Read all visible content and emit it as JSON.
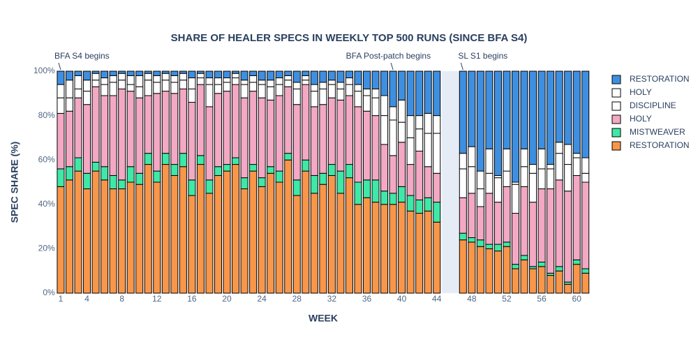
{
  "chart_data": {
    "type": "bar",
    "stacked": true,
    "title": "SHARE OF HEALER SPECS IN WEEKLY TOP 500 RUNS (SINCE BFA S4)",
    "x_label": "WEEK",
    "y_label": "SPEC SHARE (%)",
    "x": [
      1,
      2,
      3,
      4,
      5,
      6,
      7,
      8,
      9,
      10,
      11,
      12,
      13,
      14,
      15,
      16,
      17,
      18,
      19,
      20,
      21,
      22,
      23,
      24,
      25,
      26,
      27,
      28,
      29,
      30,
      31,
      32,
      33,
      34,
      35,
      36,
      37,
      38,
      39,
      40,
      41,
      42,
      43,
      44,
      47,
      48,
      49,
      50,
      51,
      52,
      53,
      54,
      55,
      56,
      57,
      58,
      59,
      60,
      61
    ],
    "xlim": [
      0.5,
      61.5
    ],
    "xticks": [
      1,
      4,
      8,
      12,
      16,
      20,
      24,
      28,
      32,
      36,
      40,
      44,
      48,
      52,
      56,
      60
    ],
    "ylim": [
      0,
      100
    ],
    "yticks": [
      {
        "value": 0,
        "label": "0%"
      },
      {
        "value": 20,
        "label": "20%"
      },
      {
        "value": 40,
        "label": "40%"
      },
      {
        "value": 60,
        "label": "60%"
      },
      {
        "value": 80,
        "label": "80%"
      },
      {
        "value": 100,
        "label": "100%"
      }
    ],
    "annotations": [
      {
        "text": "BFA S4 begins",
        "x": 1
      },
      {
        "text": "BFA Post-patch begins",
        "x": 39
      },
      {
        "text": "SL S1 begins",
        "x": 47
      }
    ],
    "series": [
      {
        "name": "RESTORATION",
        "color": "#f8964a",
        "values": [
          48,
          51,
          55,
          47,
          55,
          51,
          47,
          47,
          50,
          49,
          58,
          50,
          58,
          53,
          57,
          44,
          58,
          45,
          53,
          55,
          58,
          47,
          55,
          48,
          54,
          50,
          60,
          44,
          55,
          45,
          49,
          53,
          45,
          52,
          40,
          43,
          41,
          40,
          40,
          41,
          37,
          36,
          37,
          32,
          24,
          23,
          21,
          20,
          19,
          21,
          11,
          15,
          11,
          12,
          8,
          10,
          4,
          13,
          9
        ]
      },
      {
        "name": "MISTWEAVER",
        "color": "#3fe8a6",
        "values": [
          8,
          6,
          6,
          7,
          4,
          6,
          6,
          4,
          7,
          5,
          5,
          5,
          5,
          5,
          6,
          7,
          4,
          6,
          4,
          3,
          3,
          5,
          3,
          4,
          3,
          5,
          3,
          7,
          5,
          8,
          5,
          5,
          10,
          6,
          10,
          8,
          10,
          6,
          5,
          7,
          7,
          6,
          6,
          9,
          3,
          2,
          3,
          2,
          3,
          2,
          2,
          2,
          1,
          2,
          1,
          2,
          1,
          2,
          2
        ]
      },
      {
        "name": "HOLY",
        "color": "#f3a8c4",
        "values": [
          25,
          25,
          27,
          31,
          34,
          32,
          36,
          41,
          34,
          34,
          26,
          35,
          28,
          32,
          29,
          35,
          32,
          33,
          33,
          33,
          33,
          36,
          33,
          36,
          30,
          34,
          30,
          34,
          34,
          31,
          31,
          30,
          32,
          31,
          34,
          31,
          29,
          21,
          17,
          20,
          14,
          22,
          14,
          13,
          16,
          20,
          15,
          23,
          19,
          25,
          23,
          31,
          29,
          33,
          38,
          39,
          41,
          38,
          39
        ]
      },
      {
        "name": "DISCIPLINE",
        "color": "#ffffff",
        "values": [
          7,
          6,
          4,
          6,
          3,
          5,
          6,
          4,
          3,
          5,
          7,
          5,
          5,
          5,
          4,
          6,
          3,
          10,
          4,
          4,
          3,
          6,
          4,
          6,
          6,
          5,
          3,
          7,
          2,
          7,
          7,
          6,
          5,
          5,
          7,
          7,
          8,
          13,
          16,
          9,
          12,
          10,
          15,
          18,
          13,
          12,
          8,
          9,
          11,
          7,
          13,
          9,
          13,
          9,
          9,
          12,
          12,
          8,
          4
        ]
      },
      {
        "name": "HOLY",
        "color": "#ffffff",
        "values": [
          6,
          8,
          6,
          5,
          3,
          3,
          3,
          3,
          4,
          5,
          3,
          3,
          3,
          3,
          3,
          5,
          2,
          3,
          3,
          2,
          2,
          2,
          3,
          2,
          3,
          3,
          2,
          3,
          2,
          3,
          3,
          2,
          3,
          3,
          3,
          3,
          4,
          9,
          6,
          10,
          10,
          6,
          9,
          8,
          7,
          9,
          8,
          11,
          1,
          10,
          1,
          8,
          4,
          9,
          2,
          5,
          9,
          2,
          7
        ]
      },
      {
        "name": "RESTORATION",
        "color": "#3f8fe0",
        "values": [
          6,
          4,
          2,
          4,
          1,
          3,
          2,
          1,
          2,
          2,
          1,
          2,
          1,
          2,
          1,
          3,
          1,
          3,
          3,
          3,
          1,
          4,
          2,
          4,
          4,
          3,
          2,
          5,
          2,
          6,
          5,
          4,
          5,
          3,
          6,
          8,
          8,
          11,
          16,
          13,
          20,
          20,
          19,
          20,
          37,
          34,
          45,
          35,
          47,
          35,
          50,
          35,
          42,
          35,
          42,
          32,
          33,
          37,
          39
        ]
      }
    ]
  }
}
